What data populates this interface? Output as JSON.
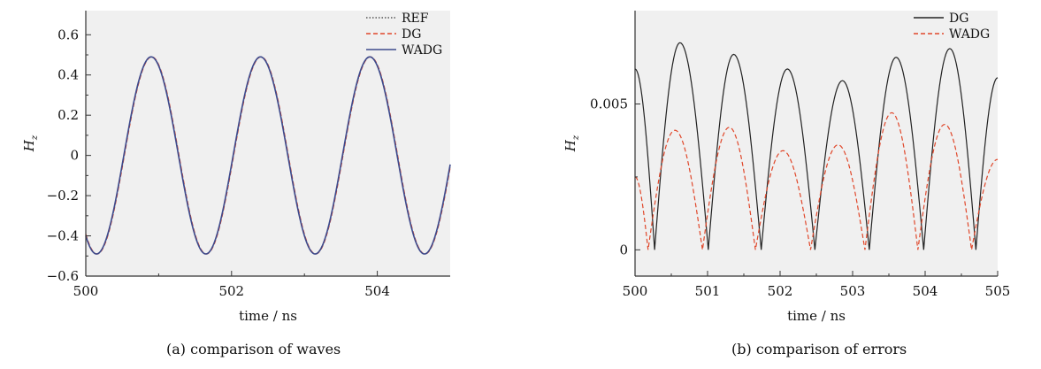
{
  "captions": {
    "a": "(a) comparison of waves",
    "b": "(b) comparison of errors"
  },
  "colors": {
    "ref": "#555555",
    "dg_left": "#e0472a",
    "wadg": "#3d4a8c",
    "dg_right": "#222222",
    "wadg_right": "#e0472a",
    "plot_bg": "#f0f0f0",
    "axis": "#333333"
  },
  "chart_data": [
    {
      "type": "line",
      "panel": "a",
      "title": "",
      "xlabel": "time / ns",
      "ylabel": "H",
      "ylabel_sub": "z",
      "xlim": [
        500,
        505
      ],
      "ylim": [
        -0.6,
        0.72
      ],
      "xticks": [
        500,
        502,
        504
      ],
      "xtick_labels": [
        "500",
        "502",
        "504"
      ],
      "yticks": [
        -0.6,
        -0.4,
        -0.2,
        0,
        0.2,
        0.4,
        0.6
      ],
      "ytick_labels": [
        "−0.6",
        "−0.4",
        "−0.2",
        "0",
        "0.2",
        "0.4",
        "0.6"
      ],
      "legend": "top-right",
      "wave": {
        "amplitude": 0.49,
        "period_ns": 1.5,
        "peak_times_ns": [
          500.9,
          502.4,
          503.9
        ],
        "trough_times_ns": [
          500.15,
          501.65,
          503.15,
          504.65
        ]
      },
      "series": [
        {
          "name": "REF",
          "style": "dotted",
          "color_key": "ref"
        },
        {
          "name": "DG",
          "style": "dashed",
          "color_key": "dg_left"
        },
        {
          "name": "WADG",
          "style": "solid",
          "color_key": "wadg"
        }
      ]
    },
    {
      "type": "line",
      "panel": "b",
      "title": "",
      "xlabel": "time / ns",
      "ylabel": "H",
      "ylabel_sub": "z",
      "xlim": [
        500,
        505
      ],
      "ylim": [
        -0.0009,
        0.0082
      ],
      "xticks": [
        500,
        501,
        502,
        503,
        504,
        505
      ],
      "xtick_labels": [
        "500",
        "501",
        "502",
        "503",
        "504",
        "505"
      ],
      "yticks": [
        0,
        0.005
      ],
      "ytick_labels": [
        "0",
        "0.005"
      ],
      "legend": "top-right",
      "series": [
        {
          "name": "DG",
          "style": "solid",
          "color_key": "dg_right",
          "start_value": 0.0062,
          "end_value": 0.0059,
          "zeros": [
            500.27,
            501.01,
            501.74,
            502.48,
            503.23,
            503.98,
            504.7
          ],
          "peaks": [
            {
              "x": 500.62,
              "y": 0.0071
            },
            {
              "x": 501.36,
              "y": 0.0067
            },
            {
              "x": 502.1,
              "y": 0.0062
            },
            {
              "x": 502.86,
              "y": 0.0058
            },
            {
              "x": 503.6,
              "y": 0.0066
            },
            {
              "x": 504.34,
              "y": 0.0069
            }
          ]
        },
        {
          "name": "WADG",
          "style": "dashed",
          "color_key": "wadg_right",
          "start_value": 0.0025,
          "end_value": 0.0031,
          "zeros": [
            500.18,
            500.93,
            501.66,
            502.42,
            503.17,
            503.9,
            504.64
          ],
          "peaks": [
            {
              "x": 500.55,
              "y": 0.0041
            },
            {
              "x": 501.3,
              "y": 0.0042
            },
            {
              "x": 502.04,
              "y": 0.0034
            },
            {
              "x": 502.8,
              "y": 0.0036
            },
            {
              "x": 503.54,
              "y": 0.0047
            },
            {
              "x": 504.27,
              "y": 0.0043
            }
          ]
        }
      ]
    }
  ]
}
